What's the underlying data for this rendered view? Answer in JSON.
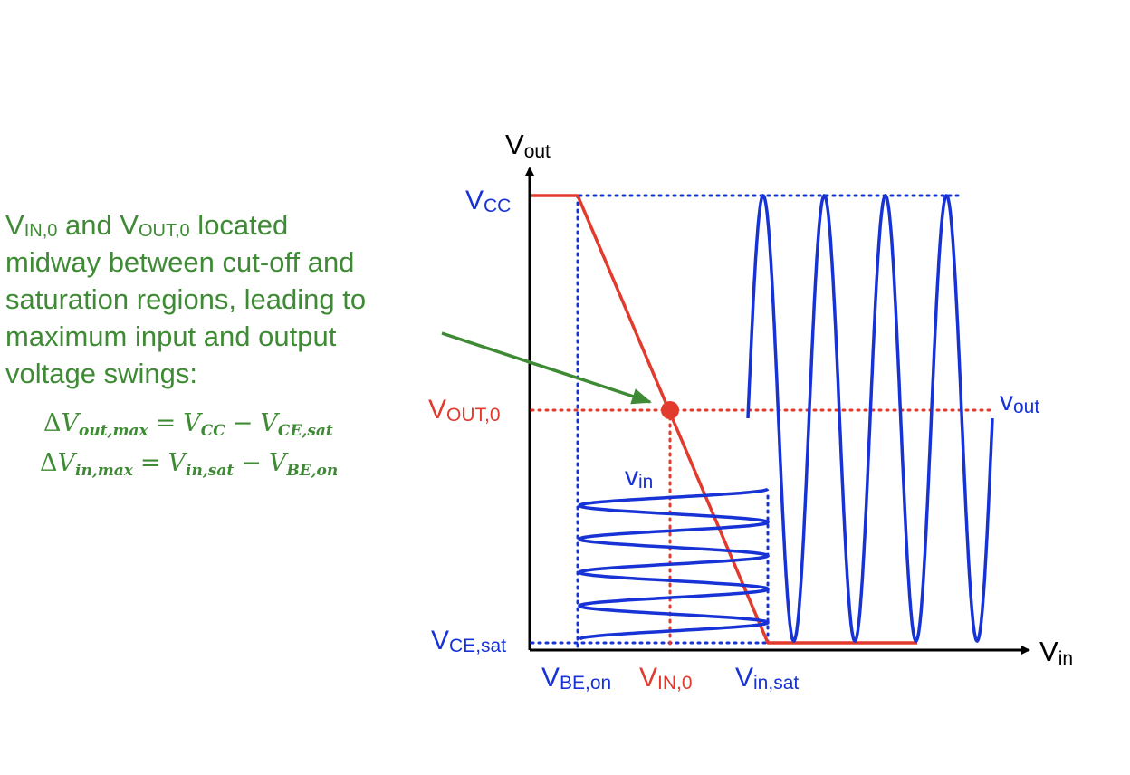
{
  "annotation": {
    "line1": {
      "v1": "V",
      "s1": "IN,0",
      "mid": " and V",
      "s2": "OUT,0",
      "rest": " located"
    },
    "line2": "midway between cut-off and",
    "line3": "saturation regions, leading to",
    "line4": "maximum input and output",
    "line5": "voltage swings:"
  },
  "equations": {
    "eq1": {
      "delta": "Δ",
      "lhs_v": "V",
      "lhs_sub": "out,max",
      "op1": "=",
      "a_v": "V",
      "a_sub": "CC",
      "op2": "−",
      "b_v": "V",
      "b_sub": "CE,sat"
    },
    "eq2": {
      "delta": "Δ",
      "lhs_v": "V",
      "lhs_sub": "in,max",
      "op1": "=",
      "a_v": "V",
      "a_sub": "in,sat",
      "op2": "−",
      "b_v": "V",
      "b_sub": "BE,on"
    }
  },
  "axes": {
    "y_label": {
      "v": "V",
      "sub": "out"
    },
    "x_label": {
      "v": "V",
      "sub": "in"
    }
  },
  "labels": {
    "vcc": {
      "v": "V",
      "sub": "CC"
    },
    "vout0": {
      "v": "V",
      "sub": "OUT,0"
    },
    "vcesat": {
      "v": "V",
      "sub": "CE,sat"
    },
    "vbeon": {
      "v": "V",
      "sub": "BE,on"
    },
    "vin0": {
      "v": "V",
      "sub": "IN,0"
    },
    "vinsat": {
      "v": "V",
      "sub": "in,sat"
    },
    "vin_signal": {
      "v": "v",
      "sub": "in"
    },
    "vout_signal": {
      "v": "v",
      "sub": "out"
    }
  },
  "colors": {
    "green": "#3f8a35",
    "blue": "#1733d6",
    "red": "#e23a2c",
    "black": "#000000"
  }
}
